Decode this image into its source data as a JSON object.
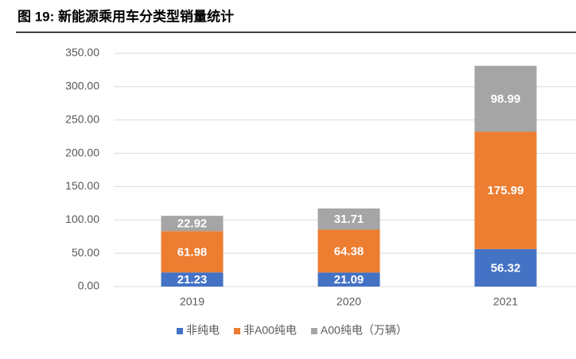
{
  "chart_data": {
    "type": "stacked-bar",
    "title": "图 19: 新能源乘用车分类型销量统计",
    "categories": [
      "2019",
      "2020",
      "2021"
    ],
    "series": [
      {
        "name": "非纯电",
        "color": "#4472c4",
        "values": [
          21.23,
          21.09,
          56.32
        ]
      },
      {
        "name": "非A00纯电",
        "color": "#ed7d31",
        "values": [
          61.98,
          64.38,
          175.99
        ]
      },
      {
        "name": "A00纯电（万辆）",
        "color": "#a5a5a5",
        "values": [
          22.92,
          31.71,
          98.99
        ]
      }
    ],
    "ylim": [
      0,
      350
    ],
    "yticks": [
      {
        "value": 0,
        "label": "0.00"
      },
      {
        "value": 50,
        "label": "50.00"
      },
      {
        "value": 100,
        "label": "100.00"
      },
      {
        "value": 150,
        "label": "150.00"
      },
      {
        "value": 200,
        "label": "200.00"
      },
      {
        "value": 250,
        "label": "250.00"
      },
      {
        "value": 300,
        "label": "300.00"
      },
      {
        "value": 350,
        "label": "350.00"
      }
    ],
    "grid": true,
    "legend": "bottom"
  }
}
